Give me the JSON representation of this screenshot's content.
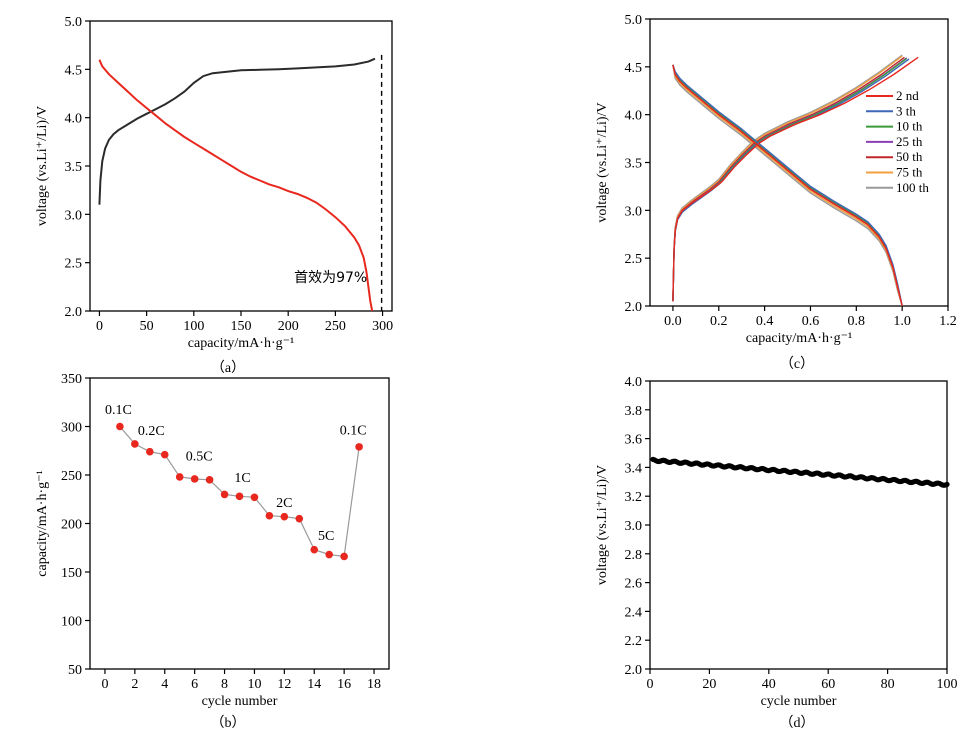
{
  "chart_data": [
    {
      "id": "a",
      "type": "line",
      "caption": "（a）",
      "xlabel": "capacity/mA·h·g⁻¹",
      "ylabel": "voltage (vs.Li⁺/Li)/V",
      "xlim": [
        -10,
        310
      ],
      "ylim": [
        2.0,
        5.0
      ],
      "xticks": [
        0,
        50,
        100,
        150,
        200,
        250,
        300
      ],
      "yticks": [
        2.0,
        2.5,
        3.0,
        3.5,
        4.0,
        4.5,
        5.0
      ],
      "xtick_labels": [
        "0",
        "50",
        "100",
        "150",
        "200",
        "250",
        "300"
      ],
      "ytick_labels": [
        "2.0",
        "2.5",
        "3.0",
        "3.5",
        "4.0",
        "4.5",
        "5.0"
      ],
      "annotation": "首效为97%",
      "cutoff_x": 299,
      "series": [
        {
          "name": "charge",
          "color": "#2b2b2b",
          "x": [
            0,
            1,
            3,
            6,
            10,
            15,
            20,
            30,
            40,
            50,
            60,
            70,
            80,
            90,
            100,
            110,
            120,
            130,
            140,
            150,
            170,
            190,
            210,
            230,
            250,
            270,
            285,
            292
          ],
          "y": [
            3.1,
            3.35,
            3.55,
            3.68,
            3.77,
            3.83,
            3.87,
            3.93,
            3.99,
            4.04,
            4.09,
            4.14,
            4.2,
            4.27,
            4.36,
            4.43,
            4.46,
            4.47,
            4.48,
            4.49,
            4.495,
            4.5,
            4.51,
            4.52,
            4.53,
            4.55,
            4.58,
            4.61
          ]
        },
        {
          "name": "discharge",
          "color": "#e8281e",
          "x": [
            0,
            3,
            10,
            20,
            30,
            40,
            50,
            60,
            70,
            80,
            90,
            100,
            110,
            120,
            130,
            140,
            150,
            160,
            170,
            180,
            190,
            200,
            210,
            220,
            230,
            240,
            250,
            260,
            270,
            275,
            280,
            283,
            285,
            287,
            289
          ],
          "y": [
            4.6,
            4.53,
            4.45,
            4.36,
            4.27,
            4.18,
            4.1,
            4.02,
            3.94,
            3.87,
            3.8,
            3.74,
            3.68,
            3.62,
            3.56,
            3.5,
            3.44,
            3.39,
            3.35,
            3.31,
            3.28,
            3.24,
            3.21,
            3.17,
            3.12,
            3.05,
            2.97,
            2.88,
            2.76,
            2.68,
            2.55,
            2.4,
            2.25,
            2.1,
            2.0
          ]
        }
      ]
    },
    {
      "id": "b",
      "type": "line",
      "caption": "（b）",
      "xlabel": "cycle number",
      "ylabel": "capacity/mA·h·g⁻¹",
      "xlim": [
        -1,
        19
      ],
      "ylim": [
        50,
        350
      ],
      "xticks": [
        0,
        2,
        4,
        6,
        8,
        10,
        12,
        14,
        16,
        18
      ],
      "yticks": [
        50,
        100,
        150,
        200,
        250,
        300,
        350
      ],
      "xtick_labels": [
        "0",
        "2",
        "4",
        "6",
        "8",
        "10",
        "12",
        "14",
        "16",
        "18"
      ],
      "ytick_labels": [
        "50",
        "100",
        "150",
        "200",
        "250",
        "300",
        "350"
      ],
      "series": [
        {
          "name": "rate capability",
          "color": "#e8281e",
          "x": [
            1,
            2,
            3,
            4,
            5,
            6,
            7,
            8,
            9,
            10,
            11,
            12,
            13,
            14,
            15,
            16,
            17
          ],
          "y": [
            300,
            282,
            274,
            271,
            248,
            246,
            245,
            230,
            228,
            227,
            208,
            207,
            205,
            173,
            168,
            166,
            279
          ]
        }
      ],
      "rate_labels": [
        {
          "text": "0.1C",
          "x": 0.9,
          "y": 313
        },
        {
          "text": "0.2C",
          "x": 3.1,
          "y": 291
        },
        {
          "text": "0.5C",
          "x": 6.3,
          "y": 265
        },
        {
          "text": "1C",
          "x": 9.2,
          "y": 243
        },
        {
          "text": "2C",
          "x": 12.0,
          "y": 217
        },
        {
          "text": "5C",
          "x": 14.8,
          "y": 183
        },
        {
          "text": "0.1C",
          "x": 16.6,
          "y": 292
        }
      ]
    },
    {
      "id": "c",
      "type": "line",
      "caption": "（c）",
      "xlabel": "capacity/mA·h·g⁻¹",
      "ylabel": "voltage (vs.Li⁺/Li)/V",
      "xlim": [
        -0.1,
        1.2
      ],
      "ylim": [
        2.0,
        5.0
      ],
      "xticks": [
        0.0,
        0.2,
        0.4,
        0.6,
        0.8,
        1.0,
        1.2
      ],
      "yticks": [
        2.0,
        2.5,
        3.0,
        3.5,
        4.0,
        4.5,
        5.0
      ],
      "xtick_labels": [
        "0.0",
        "0.2",
        "0.4",
        "0.6",
        "0.8",
        "1.0",
        "1.2"
      ],
      "ytick_labels": [
        "2.0",
        "2.5",
        "3.0",
        "3.5",
        "4.0",
        "4.5",
        "5.0"
      ],
      "legend": [
        "2 nd",
        "3 th",
        "10 th",
        "25 th",
        "50 th",
        "75 th",
        "100 th"
      ],
      "legend_colors": [
        "#e8281e",
        "#3f67b8",
        "#3a9a3a",
        "#8a3fb5",
        "#c0282c",
        "#f0a040",
        "#9a9a9a"
      ],
      "discharge_shape": {
        "x": [
          0.0,
          0.01,
          0.03,
          0.06,
          0.1,
          0.15,
          0.2,
          0.3,
          0.4,
          0.5,
          0.6,
          0.7,
          0.8,
          0.85,
          0.9,
          0.93,
          0.96,
          0.98,
          1.0
        ],
        "y": [
          4.52,
          4.42,
          4.35,
          4.28,
          4.2,
          4.1,
          4.0,
          3.82,
          3.62,
          3.42,
          3.22,
          3.07,
          2.93,
          2.85,
          2.72,
          2.6,
          2.4,
          2.2,
          2.0
        ]
      },
      "charge_shape": {
        "x": [
          0.0,
          0.005,
          0.01,
          0.02,
          0.04,
          0.08,
          0.12,
          0.16,
          0.2,
          0.25,
          0.3,
          0.35,
          0.4,
          0.5,
          0.6,
          0.7,
          0.8,
          0.9,
          1.0
        ],
        "y": [
          2.05,
          2.6,
          2.8,
          2.92,
          3.0,
          3.08,
          3.15,
          3.22,
          3.3,
          3.45,
          3.58,
          3.7,
          3.78,
          3.9,
          4.0,
          4.12,
          4.26,
          4.42,
          4.6
        ]
      },
      "cycle_offsets": [
        0.0,
        0.03,
        0.02,
        0.01,
        0.0,
        -0.02,
        -0.04
      ],
      "charge_end_x": [
        1.07,
        1.03,
        1.02,
        1.02,
        1.01,
        1.0,
        1.0
      ]
    },
    {
      "id": "d",
      "type": "scatter",
      "caption": "（d）",
      "xlabel": "cycle number",
      "ylabel": "voltage (vs.Li⁺/Li)/V",
      "xlim": [
        0,
        100
      ],
      "ylim": [
        2.0,
        4.0
      ],
      "xticks": [
        0,
        20,
        40,
        60,
        80,
        100
      ],
      "yticks": [
        2.0,
        2.2,
        2.4,
        2.6,
        2.8,
        3.0,
        3.2,
        3.4,
        3.6,
        3.8,
        4.0
      ],
      "xtick_labels": [
        "0",
        "20",
        "40",
        "60",
        "80",
        "100"
      ],
      "ytick_labels": [
        "2.0",
        "2.2",
        "2.4",
        "2.6",
        "2.8",
        "3.0",
        "3.2",
        "3.4",
        "3.6",
        "3.8",
        "4.0"
      ],
      "series": [
        {
          "name": "average voltage",
          "color": "#000000",
          "x_start": 1,
          "x_end": 100,
          "y_start": 3.45,
          "y_end": 3.28
        }
      ]
    }
  ]
}
